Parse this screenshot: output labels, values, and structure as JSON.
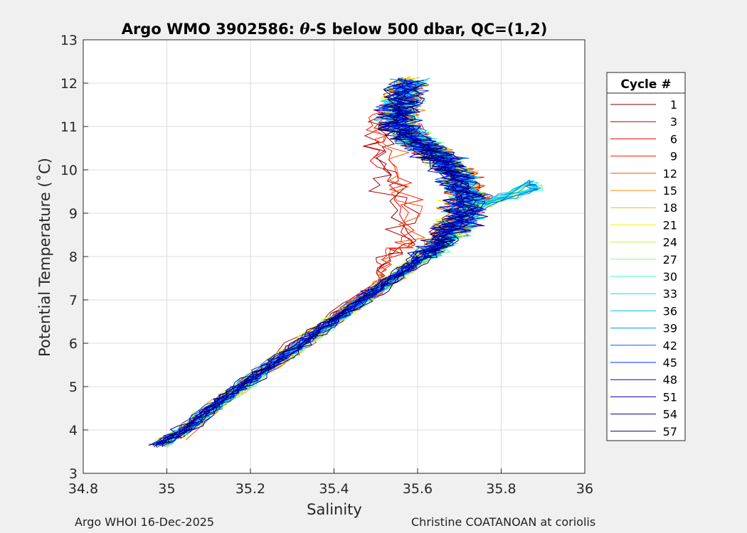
{
  "chart_data": {
    "type": "line",
    "title": "Argo WMO 3902586: θ-S below 500 dbar,  QC=(1,2)",
    "title_prefix": "Argo WMO 3902586: ",
    "title_theta": "θ",
    "title_suffix": "-S below 500 dbar,  QC=(1,2)",
    "xlabel": "Salinity",
    "ylabel": "Potential Temperature (˚C)",
    "xlim": [
      34.8,
      36
    ],
    "ylim": [
      3,
      13
    ],
    "xticks": [
      34.8,
      35,
      35.2,
      35.4,
      35.6,
      35.8,
      36
    ],
    "yticks": [
      3,
      4,
      5,
      6,
      7,
      8,
      9,
      10,
      11,
      12,
      13
    ],
    "grid": true,
    "legend": {
      "title": "Cycle #",
      "position": "outside-right",
      "entries": [
        "1",
        "3",
        "6",
        "9",
        "12",
        "15",
        "18",
        "21",
        "24",
        "27",
        "30",
        "33",
        "36",
        "39",
        "42",
        "45",
        "48",
        "51",
        "54",
        "57"
      ],
      "colors": [
        "#800000",
        "#b20000",
        "#e60000",
        "#ff1a00",
        "#ff5000",
        "#ff8600",
        "#ffbc00",
        "#f2f200",
        "#b8ff42",
        "#7cff7c",
        "#42ffb8",
        "#00e6e6",
        "#00c0ff",
        "#0090ff",
        "#0060ff",
        "#0030ff",
        "#0000e6",
        "#0000b8",
        "#00008a",
        "#000060"
      ]
    },
    "series_common_path": [
      [
        34.98,
        3.65
      ],
      [
        35.05,
        4.05
      ],
      [
        35.12,
        4.6
      ],
      [
        35.2,
        5.15
      ],
      [
        35.28,
        5.7
      ],
      [
        35.36,
        6.25
      ],
      [
        35.44,
        6.8
      ],
      [
        35.52,
        7.35
      ],
      [
        35.6,
        7.9
      ],
      [
        35.66,
        8.35
      ],
      [
        35.7,
        8.8
      ],
      [
        35.72,
        9.3
      ],
      [
        35.7,
        9.8
      ],
      [
        35.66,
        10.25
      ],
      [
        35.6,
        10.65
      ],
      [
        35.55,
        11.05
      ],
      [
        35.56,
        11.5
      ],
      [
        35.58,
        12.05
      ]
    ],
    "series_note_values": {
      "early_branch": [
        [
          35.03,
          3.8
        ],
        [
          35.3,
          6.0
        ],
        [
          35.5,
          7.4
        ],
        [
          35.52,
          8.0
        ],
        [
          35.58,
          8.4
        ],
        [
          35.55,
          9.5
        ],
        [
          35.52,
          10.3
        ],
        [
          35.5,
          11.0
        ],
        [
          35.57,
          11.8
        ]
      ],
      "salty_excursion": [
        [
          35.72,
          8.9
        ],
        [
          35.88,
          9.7
        ],
        [
          35.9,
          9.55
        ],
        [
          35.75,
          9.2
        ]
      ]
    }
  },
  "footer": {
    "left": "Argo WHOI 16-Dec-2025",
    "right": "Christine COATANOAN at coriolis"
  }
}
